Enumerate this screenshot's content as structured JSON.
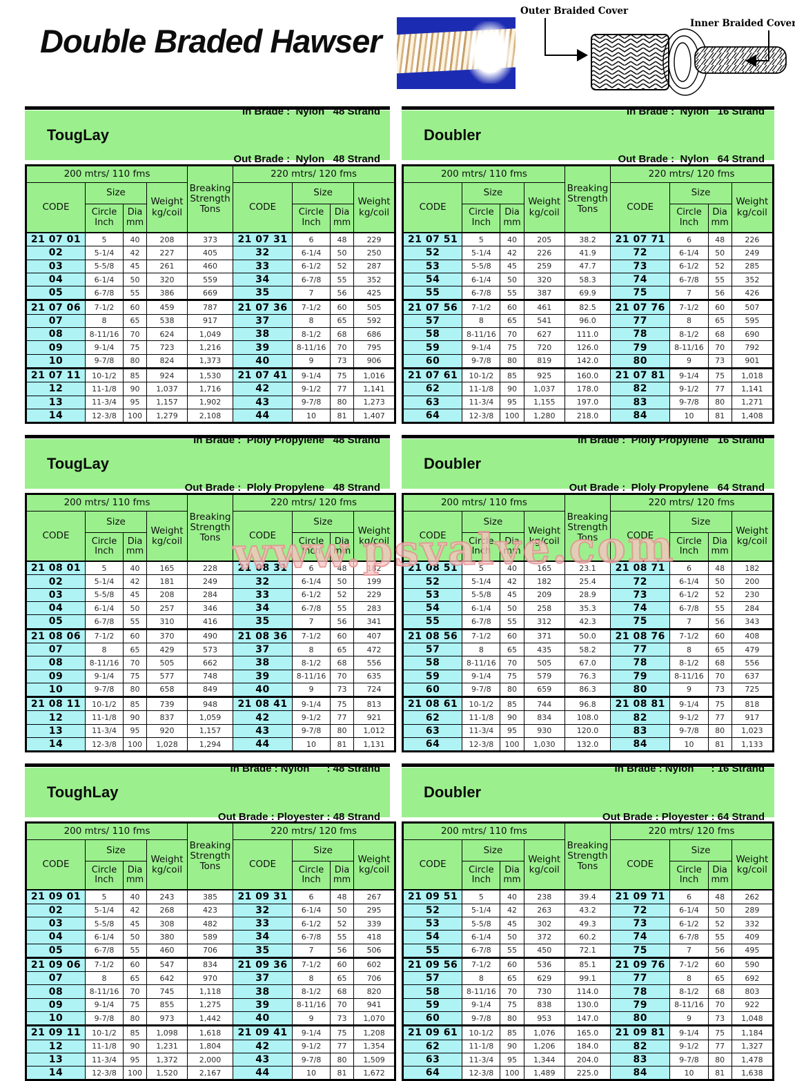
{
  "page": {
    "title": "Double Braded Hawser",
    "watermark": "www.psvalve.com"
  },
  "diagram": {
    "outer_label": "Outer Braided Cover",
    "inner_label": "Inner Braided Cover"
  },
  "colors": {
    "band_green": "#9bf08d",
    "code_cyan": "#aff3f5",
    "photo_blue": "#1c2cb2",
    "watermark_pink": "#e38e8e"
  },
  "headers": {
    "left_span": "200 mtrs/ 110 fms",
    "right_span": "220 mtrs/ 120 fms",
    "code": "CODE",
    "size": "Size",
    "circle": "Circle\nInch",
    "dia": "Dia\nmm",
    "weight": "Weight\nkg/coil",
    "breaking": "Breaking\nStrength\nTons"
  },
  "tables": [
    {
      "name": "TougLay",
      "spec_in": "In Brade :  Nylon   48 Strand",
      "spec_out": "Out Brade :  Nylon   48 Strand",
      "left_rows": [
        [
          "21 07 01",
          "5",
          "40",
          "208",
          "373"
        ],
        [
          "02",
          "5-1/4",
          "42",
          "227",
          "405"
        ],
        [
          "03",
          "5-5/8",
          "45",
          "261",
          "460"
        ],
        [
          "04",
          "6-1/4",
          "50",
          "320",
          "559"
        ],
        [
          "05",
          "6-7/8",
          "55",
          "386",
          "669"
        ],
        [
          "21 07 06",
          "7-1/2",
          "60",
          "459",
          "787"
        ],
        [
          "07",
          "8",
          "65",
          "538",
          "917"
        ],
        [
          "08",
          "8-11/16",
          "70",
          "624",
          "1,049"
        ],
        [
          "09",
          "9-1/4",
          "75",
          "723",
          "1,216"
        ],
        [
          "10",
          "9-7/8",
          "80",
          "824",
          "1,373"
        ],
        [
          "21 07 11",
          "10-1/2",
          "85",
          "924",
          "1,530"
        ],
        [
          "12",
          "11-1/8",
          "90",
          "1,037",
          "1,716"
        ],
        [
          "13",
          "11-3/4",
          "95",
          "1,157",
          "1,902"
        ],
        [
          "14",
          "12-3/8",
          "100",
          "1,279",
          "2,108"
        ]
      ],
      "right_rows": [
        [
          "21 07 31",
          "6",
          "48",
          "229"
        ],
        [
          "32",
          "6-1/4",
          "50",
          "250"
        ],
        [
          "33",
          "6-1/2",
          "52",
          "287"
        ],
        [
          "34",
          "6-7/8",
          "55",
          "352"
        ],
        [
          "35",
          "7",
          "56",
          "425"
        ],
        [
          "21 07 36",
          "7-1/2",
          "60",
          "505"
        ],
        [
          "37",
          "8",
          "65",
          "592"
        ],
        [
          "38",
          "8-1/2",
          "68",
          "686"
        ],
        [
          "39",
          "8-11/16",
          "70",
          "795"
        ],
        [
          "40",
          "9",
          "73",
          "906"
        ],
        [
          "21 07 41",
          "9-1/4",
          "75",
          "1,016"
        ],
        [
          "42",
          "9-1/2",
          "77",
          "1,141"
        ],
        [
          "43",
          "9-7/8",
          "80",
          "1,273"
        ],
        [
          "44",
          "10",
          "81",
          "1,407"
        ]
      ]
    },
    {
      "name": "Doubler",
      "spec_in": "In Brade :  Nylon   16 Strand",
      "spec_out": "Out Brade :  Nylon   64 Strand",
      "left_rows": [
        [
          "21 07 51",
          "5",
          "40",
          "205",
          "38.2"
        ],
        [
          "52",
          "5-1/4",
          "42",
          "226",
          "41.9"
        ],
        [
          "53",
          "5-5/8",
          "45",
          "259",
          "47.7"
        ],
        [
          "54",
          "6-1/4",
          "50",
          "320",
          "58.3"
        ],
        [
          "55",
          "6-7/8",
          "55",
          "387",
          "69.9"
        ],
        [
          "21 07 56",
          "7-1/2",
          "60",
          "461",
          "82.5"
        ],
        [
          "57",
          "8",
          "65",
          "541",
          "96.0"
        ],
        [
          "58",
          "8-11/16",
          "70",
          "627",
          "111.0"
        ],
        [
          "59",
          "9-1/4",
          "75",
          "720",
          "126.0"
        ],
        [
          "60",
          "9-7/8",
          "80",
          "819",
          "142.0"
        ],
        [
          "21 07 61",
          "10-1/2",
          "85",
          "925",
          "160.0"
        ],
        [
          "62",
          "11-1/8",
          "90",
          "1,037",
          "178.0"
        ],
        [
          "63",
          "11-3/4",
          "95",
          "1,155",
          "197.0"
        ],
        [
          "64",
          "12-3/8",
          "100",
          "1,280",
          "218.0"
        ]
      ],
      "right_rows": [
        [
          "21 07 71",
          "6",
          "48",
          "226"
        ],
        [
          "72",
          "6-1/4",
          "50",
          "249"
        ],
        [
          "73",
          "6-1/2",
          "52",
          "285"
        ],
        [
          "74",
          "6-7/8",
          "55",
          "352"
        ],
        [
          "75",
          "7",
          "56",
          "426"
        ],
        [
          "21 07 76",
          "7-1/2",
          "60",
          "507"
        ],
        [
          "77",
          "8",
          "65",
          "595"
        ],
        [
          "78",
          "8-1/2",
          "68",
          "690"
        ],
        [
          "79",
          "8-11/16",
          "70",
          "792"
        ],
        [
          "80",
          "9",
          "73",
          "901"
        ],
        [
          "21 07 81",
          "9-1/4",
          "75",
          "1,018"
        ],
        [
          "82",
          "9-1/2",
          "77",
          "1,141"
        ],
        [
          "83",
          "9-7/8",
          "80",
          "1,271"
        ],
        [
          "84",
          "10",
          "81",
          "1,408"
        ]
      ]
    },
    {
      "name": "TougLay",
      "spec_in": "In Brade :  Ploly Propylene   48 Strand",
      "spec_out": "Out Brade :  Ploly Propylene   48 Strand",
      "left_rows": [
        [
          "21 08 01",
          "5",
          "40",
          "165",
          "228"
        ],
        [
          "02",
          "5-1/4",
          "42",
          "181",
          "249"
        ],
        [
          "03",
          "5-5/8",
          "45",
          "208",
          "284"
        ],
        [
          "04",
          "6-1/4",
          "50",
          "257",
          "346"
        ],
        [
          "05",
          "6-7/8",
          "55",
          "310",
          "416"
        ],
        [
          "21 08 06",
          "7-1/2",
          "60",
          "370",
          "490"
        ],
        [
          "07",
          "8",
          "65",
          "429",
          "573"
        ],
        [
          "08",
          "8-11/16",
          "70",
          "505",
          "662"
        ],
        [
          "09",
          "9-1/4",
          "75",
          "577",
          "748"
        ],
        [
          "10",
          "9-7/8",
          "80",
          "658",
          "849"
        ],
        [
          "21 08 11",
          "10-1/2",
          "85",
          "739",
          "948"
        ],
        [
          "12",
          "11-1/8",
          "90",
          "837",
          "1,059"
        ],
        [
          "13",
          "11-3/4",
          "95",
          "920",
          "1,157"
        ],
        [
          "14",
          "12-3/8",
          "100",
          "1,028",
          "1,294"
        ]
      ],
      "right_rows": [
        [
          "21 08 31",
          "6",
          "48",
          "182"
        ],
        [
          "32",
          "6-1/4",
          "50",
          "199"
        ],
        [
          "33",
          "6-1/2",
          "52",
          "229"
        ],
        [
          "34",
          "6-7/8",
          "55",
          "283"
        ],
        [
          "35",
          "7",
          "56",
          "341"
        ],
        [
          "21 08 36",
          "7-1/2",
          "60",
          "407"
        ],
        [
          "37",
          "8",
          "65",
          "472"
        ],
        [
          "38",
          "8-1/2",
          "68",
          "556"
        ],
        [
          "39",
          "8-11/16",
          "70",
          "635"
        ],
        [
          "40",
          "9",
          "73",
          "724"
        ],
        [
          "21 08 41",
          "9-1/4",
          "75",
          "813"
        ],
        [
          "42",
          "9-1/2",
          "77",
          "921"
        ],
        [
          "43",
          "9-7/8",
          "80",
          "1,012"
        ],
        [
          "44",
          "10",
          "81",
          "1,131"
        ]
      ]
    },
    {
      "name": "Doubler",
      "spec_in": "In Brade :  Ploly Propylene   16 Strand",
      "spec_out": "Out Brade :  Ploly Propylene   64 Strand",
      "left_rows": [
        [
          "21 08 51",
          "5",
          "40",
          "165",
          "23.1"
        ],
        [
          "52",
          "5-1/4",
          "42",
          "182",
          "25.4"
        ],
        [
          "53",
          "5-5/8",
          "45",
          "209",
          "28.9"
        ],
        [
          "54",
          "6-1/4",
          "50",
          "258",
          "35.3"
        ],
        [
          "55",
          "6-7/8",
          "55",
          "312",
          "42.3"
        ],
        [
          "21 08 56",
          "7-1/2",
          "60",
          "371",
          "50.0"
        ],
        [
          "57",
          "8",
          "65",
          "435",
          "58.2"
        ],
        [
          "58",
          "8-11/16",
          "70",
          "505",
          "67.0"
        ],
        [
          "59",
          "9-1/4",
          "75",
          "579",
          "76.3"
        ],
        [
          "60",
          "9-7/8",
          "80",
          "659",
          "86.3"
        ],
        [
          "21 08 61",
          "10-1/2",
          "85",
          "744",
          "96.8"
        ],
        [
          "62",
          "11-1/8",
          "90",
          "834",
          "108.0"
        ],
        [
          "63",
          "11-3/4",
          "95",
          "930",
          "120.0"
        ],
        [
          "64",
          "12-3/8",
          "100",
          "1,030",
          "132.0"
        ]
      ],
      "right_rows": [
        [
          "21 08 71",
          "6",
          "48",
          "182"
        ],
        [
          "72",
          "6-1/4",
          "50",
          "200"
        ],
        [
          "73",
          "6-1/2",
          "52",
          "230"
        ],
        [
          "74",
          "6-7/8",
          "55",
          "284"
        ],
        [
          "75",
          "7",
          "56",
          "343"
        ],
        [
          "21 08 76",
          "7-1/2",
          "60",
          "408"
        ],
        [
          "77",
          "8",
          "65",
          "479"
        ],
        [
          "78",
          "8-1/2",
          "68",
          "556"
        ],
        [
          "79",
          "8-11/16",
          "70",
          "637"
        ],
        [
          "80",
          "9",
          "73",
          "725"
        ],
        [
          "21 08 81",
          "9-1/4",
          "75",
          "818"
        ],
        [
          "82",
          "9-1/2",
          "77",
          "917"
        ],
        [
          "83",
          "9-7/8",
          "80",
          "1,023"
        ],
        [
          "84",
          "10",
          "81",
          "1,133"
        ]
      ]
    },
    {
      "name": "ToughLay",
      "spec_in": "In Brade : Nylon      : 48 Strand",
      "spec_out": "Out Brade : Ployester : 48 Strand",
      "left_rows": [
        [
          "21 09 01",
          "5",
          "40",
          "243",
          "385"
        ],
        [
          "02",
          "5-1/4",
          "42",
          "268",
          "423"
        ],
        [
          "03",
          "5-5/8",
          "45",
          "308",
          "482"
        ],
        [
          "04",
          "6-1/4",
          "50",
          "380",
          "589"
        ],
        [
          "05",
          "6-7/8",
          "55",
          "460",
          "706"
        ],
        [
          "21 09 06",
          "7-1/2",
          "60",
          "547",
          "834"
        ],
        [
          "07",
          "8",
          "65",
          "642",
          "970"
        ],
        [
          "08",
          "8-11/16",
          "70",
          "745",
          "1,118"
        ],
        [
          "09",
          "9-1/4",
          "75",
          "855",
          "1,275"
        ],
        [
          "10",
          "9-7/8",
          "80",
          "973",
          "1,442"
        ],
        [
          "21 09 11",
          "10-1/2",
          "85",
          "1,098",
          "1,618"
        ],
        [
          "12",
          "11-1/8",
          "90",
          "1,231",
          "1,804"
        ],
        [
          "13",
          "11-3/4",
          "95",
          "1,372",
          "2,000"
        ],
        [
          "14",
          "12-3/8",
          "100",
          "1,520",
          "2,167"
        ]
      ],
      "right_rows": [
        [
          "21 09 31",
          "6",
          "48",
          "267"
        ],
        [
          "32",
          "6-1/4",
          "50",
          "295"
        ],
        [
          "33",
          "6-1/2",
          "52",
          "339"
        ],
        [
          "34",
          "6-7/8",
          "55",
          "418"
        ],
        [
          "35",
          "7",
          "56",
          "506"
        ],
        [
          "21 09 36",
          "7-1/2",
          "60",
          "602"
        ],
        [
          "37",
          "8",
          "65",
          "706"
        ],
        [
          "38",
          "8-1/2",
          "68",
          "820"
        ],
        [
          "39",
          "8-11/16",
          "70",
          "941"
        ],
        [
          "40",
          "9",
          "73",
          "1,070"
        ],
        [
          "21 09 41",
          "9-1/4",
          "75",
          "1,208"
        ],
        [
          "42",
          "9-1/2",
          "77",
          "1,354"
        ],
        [
          "43",
          "9-7/8",
          "80",
          "1,509"
        ],
        [
          "44",
          "10",
          "81",
          "1,672"
        ]
      ]
    },
    {
      "name": "Doubler",
      "spec_in": "In Brade : Nylon      : 16 Strand",
      "spec_out": "Out Brade : Ployester : 64 Strand",
      "left_rows": [
        [
          "21 09 51",
          "5",
          "40",
          "238",
          "39.4"
        ],
        [
          "52",
          "5-1/4",
          "42",
          "263",
          "43.2"
        ],
        [
          "53",
          "5-5/8",
          "45",
          "302",
          "49.3"
        ],
        [
          "54",
          "6-1/4",
          "50",
          "372",
          "60.2"
        ],
        [
          "55",
          "6-7/8",
          "55",
          "450",
          "72.1"
        ],
        [
          "21 09 56",
          "7-1/2",
          "60",
          "536",
          "85.1"
        ],
        [
          "57",
          "8",
          "65",
          "629",
          "99.1"
        ],
        [
          "58",
          "8-11/16",
          "70",
          "730",
          "114.0"
        ],
        [
          "59",
          "9-1/4",
          "75",
          "838",
          "130.0"
        ],
        [
          "60",
          "9-7/8",
          "80",
          "953",
          "147.0"
        ],
        [
          "21 09 61",
          "10-1/2",
          "85",
          "1,076",
          "165.0"
        ],
        [
          "62",
          "11-1/8",
          "90",
          "1,206",
          "184.0"
        ],
        [
          "63",
          "11-3/4",
          "95",
          "1,344",
          "204.0"
        ],
        [
          "64",
          "12-3/8",
          "100",
          "1,489",
          "225.0"
        ]
      ],
      "right_rows": [
        [
          "21 09 71",
          "6",
          "48",
          "262"
        ],
        [
          "72",
          "6-1/4",
          "50",
          "289"
        ],
        [
          "73",
          "6-1/2",
          "52",
          "332"
        ],
        [
          "74",
          "6-7/8",
          "55",
          "409"
        ],
        [
          "75",
          "7",
          "56",
          "495"
        ],
        [
          "21 09 76",
          "7-1/2",
          "60",
          "590"
        ],
        [
          "77",
          "8",
          "65",
          "692"
        ],
        [
          "78",
          "8-1/2",
          "68",
          "803"
        ],
        [
          "79",
          "8-11/16",
          "70",
          "922"
        ],
        [
          "80",
          "9",
          "73",
          "1,048"
        ],
        [
          "21 09 81",
          "9-1/4",
          "75",
          "1,184"
        ],
        [
          "82",
          "9-1/2",
          "77",
          "1,327"
        ],
        [
          "83",
          "9-7/8",
          "80",
          "1,478"
        ],
        [
          "84",
          "10",
          "81",
          "1,638"
        ]
      ]
    }
  ]
}
